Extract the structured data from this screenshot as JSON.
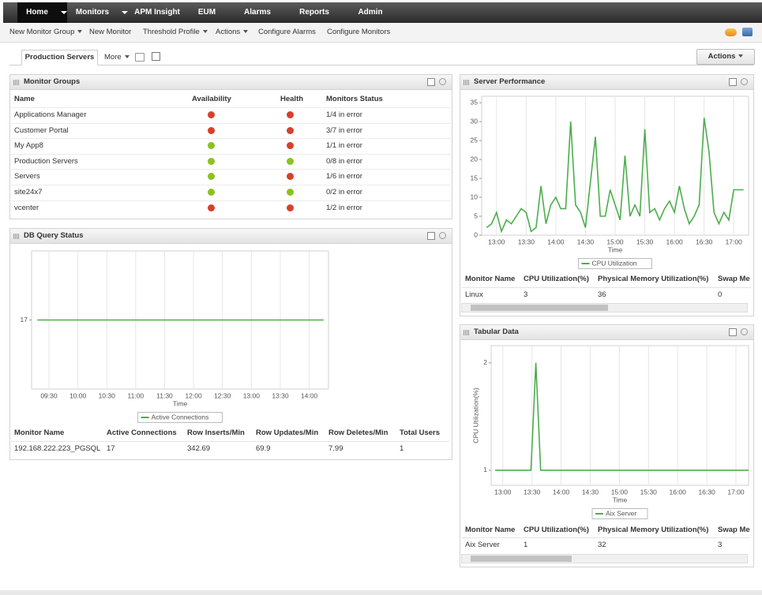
{
  "nav": {
    "items": [
      "Home",
      "Monitors",
      "APM Insight",
      "EUM",
      "Alarms",
      "Reports",
      "Admin"
    ]
  },
  "toolbar": {
    "items": [
      "New Monitor Group",
      "New Monitor",
      "Threshold Profile",
      "Actions",
      "Configure Alarms",
      "Configure Monitors"
    ]
  },
  "tabs": {
    "active": "Production Servers",
    "more": "More",
    "actions": "Actions"
  },
  "monitor_groups": {
    "title": "Monitor Groups",
    "columns": [
      "Name",
      "Availability",
      "Health",
      "Monitors Status"
    ],
    "rows": [
      {
        "name": "Applications Manager",
        "availability_color": "#d8402b",
        "health_color": "#d8402b",
        "status": "1/4 in error"
      },
      {
        "name": "Customer Portal",
        "availability_color": "#d8402b",
        "health_color": "#d8402b",
        "status": "3/7 in error"
      },
      {
        "name": "My App8",
        "availability_color": "#8cc21f",
        "health_color": "#d8402b",
        "status": "1/1 in error"
      },
      {
        "name": "Production Servers",
        "availability_color": "#8cc21f",
        "health_color": "#8cc21f",
        "status": "0/8 in error"
      },
      {
        "name": "Servers",
        "availability_color": "#8cc21f",
        "health_color": "#d8402b",
        "status": "1/6 in error"
      },
      {
        "name": "site24x7",
        "availability_color": "#8cc21f",
        "health_color": "#8cc21f",
        "status": "0/2 in error"
      },
      {
        "name": "vcenter",
        "availability_color": "#d8402b",
        "health_color": "#d8402b",
        "status": "1/2 in error"
      }
    ]
  },
  "db_query": {
    "title": "DB Query Status",
    "chart": {
      "type": "line",
      "x": [
        558,
        855
      ],
      "series": [
        {
          "name": "Active Connections",
          "color": "#4cae4c",
          "values": [
            17,
            17
          ]
        }
      ],
      "xlim": [
        552,
        860
      ],
      "ylim": [
        16,
        18
      ],
      "xticks": [
        {
          "value": 570,
          "label": "09:30"
        },
        {
          "value": 600,
          "label": "10:00"
        },
        {
          "value": 630,
          "label": "10:30"
        },
        {
          "value": 660,
          "label": "11:00"
        },
        {
          "value": 690,
          "label": "11:30"
        },
        {
          "value": 720,
          "label": "12:00"
        },
        {
          "value": 750,
          "label": "12:30"
        },
        {
          "value": 780,
          "label": "13:00"
        },
        {
          "value": 810,
          "label": "13:30"
        },
        {
          "value": 840,
          "label": "14:00"
        }
      ],
      "yticks": [
        17
      ],
      "xlabel": "Time",
      "grid": true
    },
    "table": {
      "columns": [
        "Monitor Name",
        "Active Connections",
        "Row Inserts/Min",
        "Row Updates/Min",
        "Row Deletes/Min",
        "Total Users"
      ],
      "rows": [
        [
          "192.168.222.223_PGSQL",
          17,
          342.69,
          69.9,
          7.99,
          1
        ]
      ]
    }
  },
  "server_performance": {
    "title": "Server Performance",
    "chart": {
      "type": "line",
      "x": [
        770,
        775,
        780,
        785,
        790,
        795,
        800,
        805,
        810,
        815,
        820,
        825,
        830,
        835,
        840,
        845,
        850,
        855,
        860,
        865,
        870,
        875,
        880,
        885,
        890,
        895,
        900,
        905,
        910,
        915,
        920,
        925,
        930,
        935,
        940,
        945,
        950,
        955,
        960,
        965,
        970,
        975,
        980,
        985,
        990,
        995,
        1000,
        1005,
        1010,
        1015,
        1020,
        1025,
        1030
      ],
      "series": [
        {
          "name": "CPU Utilization",
          "color": "#4cae4c",
          "values": [
            2,
            3,
            6,
            1,
            4,
            3,
            5,
            7,
            6,
            1,
            2,
            13,
            3,
            8,
            10,
            7,
            7,
            30,
            8,
            6,
            2,
            14,
            26,
            5,
            5,
            12,
            8,
            4,
            21,
            5,
            8,
            5,
            28,
            6,
            7,
            4,
            7,
            9,
            6,
            13,
            7,
            3,
            5,
            8,
            31,
            22,
            6,
            3,
            6,
            4,
            12,
            12,
            12
          ]
        }
      ],
      "xlim": [
        765,
        1035
      ],
      "ylim": [
        0,
        36.7
      ],
      "xticks": [
        {
          "value": 780,
          "label": "13:00"
        },
        {
          "value": 810,
          "label": "13:30"
        },
        {
          "value": 840,
          "label": "14:00"
        },
        {
          "value": 870,
          "label": "14:30"
        },
        {
          "value": 900,
          "label": "15:00"
        },
        {
          "value": 930,
          "label": "15:30"
        },
        {
          "value": 960,
          "label": "16:00"
        },
        {
          "value": 990,
          "label": "16:30"
        },
        {
          "value": 1020,
          "label": "17:00"
        }
      ],
      "yticks": [
        0,
        5,
        10,
        15,
        20,
        25,
        30,
        35
      ],
      "xlabel": "Time",
      "grid": true
    },
    "table": {
      "columns": [
        "Monitor Name",
        "CPU Utilization(%)",
        "Physical Memory Utilization(%)",
        "Swap Me"
      ],
      "rows": [
        [
          "Linux",
          3,
          36,
          0
        ]
      ]
    }
  },
  "tabular_data": {
    "title": "Tabular Data",
    "chart": {
      "type": "line",
      "x": [
        772,
        809,
        814,
        819,
        1033
      ],
      "series": [
        {
          "name": "Aix Server",
          "color": "#4cae4c",
          "values": [
            1,
            1,
            2,
            1,
            1
          ]
        }
      ],
      "xlim": [
        768,
        1033
      ],
      "ylim": [
        0.86,
        2.16
      ],
      "xticks": [
        {
          "value": 780,
          "label": "13:00"
        },
        {
          "value": 810,
          "label": "13:30"
        },
        {
          "value": 840,
          "label": "14:00"
        },
        {
          "value": 870,
          "label": "14:30"
        },
        {
          "value": 900,
          "label": "15:00"
        },
        {
          "value": 930,
          "label": "15:30"
        },
        {
          "value": 960,
          "label": "16:00"
        },
        {
          "value": 990,
          "label": "16:30"
        },
        {
          "value": 1020,
          "label": "17:00"
        }
      ],
      "yticks": [
        1,
        2
      ],
      "xlabel": "Time",
      "ylabel": "CPU Utilization(%)",
      "grid": true
    },
    "table": {
      "columns": [
        "Monitor Name",
        "CPU Utilization(%)",
        "Physical Memory Utilization(%)",
        "Swap Me"
      ],
      "rows": [
        [
          "Aix Server",
          1,
          32,
          3
        ]
      ]
    }
  }
}
